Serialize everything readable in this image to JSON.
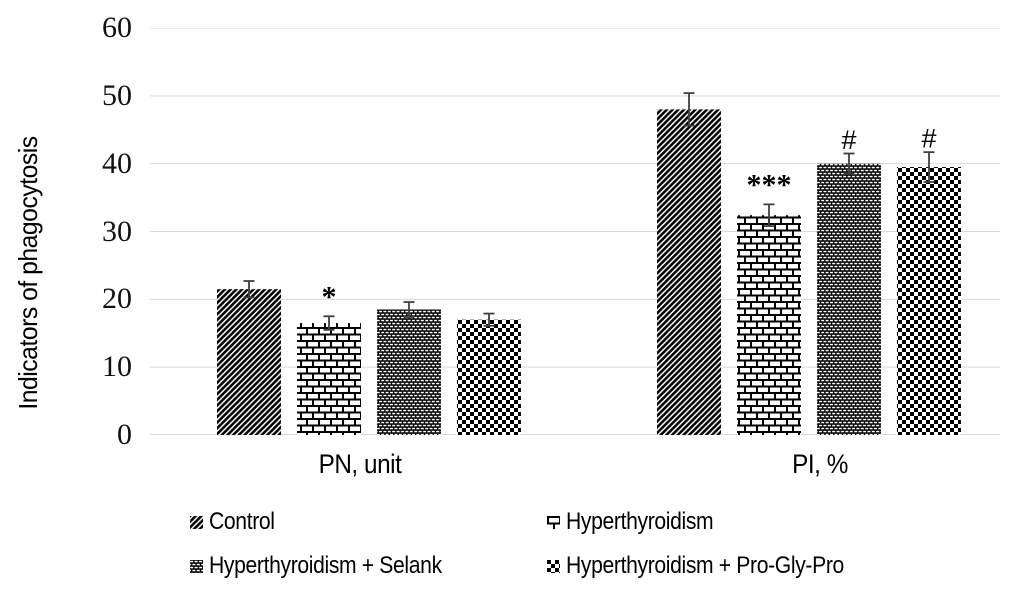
{
  "chart_data": {
    "type": "bar",
    "ylabel": "Indicators of phagocytosis",
    "categories": [
      "PN, unit",
      "PI, %"
    ],
    "series": [
      {
        "name": "Control",
        "pattern": "diag",
        "values": [
          21.5,
          48.0
        ],
        "errors": [
          1.2,
          2.4
        ]
      },
      {
        "name": "Hyperthyroidism",
        "pattern": "brick",
        "values": [
          16.5,
          32.4
        ],
        "errors": [
          1.0,
          1.6
        ]
      },
      {
        "name": "Hyperthyroidism + Selank",
        "pattern": "dots",
        "values": [
          18.5,
          40.0
        ],
        "errors": [
          1.1,
          1.5
        ]
      },
      {
        "name": "Hyperthyroidism + Pro-Gly-Pro",
        "pattern": "checker",
        "values": [
          17.0,
          39.5
        ],
        "errors": [
          0.9,
          2.2
        ]
      }
    ],
    "annotations": [
      {
        "series": 1,
        "category": 0,
        "text": "*"
      },
      {
        "series": 1,
        "category": 1,
        "text": "***"
      },
      {
        "series": 2,
        "category": 1,
        "text": "#"
      },
      {
        "series": 3,
        "category": 1,
        "text": "#"
      }
    ],
    "ylim": [
      0,
      60
    ],
    "yticks": [
      0,
      10,
      20,
      30,
      40,
      50,
      60
    ],
    "grid": true,
    "legend_position": "bottom",
    "colors": {
      "grid": "#d9d9d9",
      "bar": "#000000",
      "error_bar": "#3f3f3f",
      "text": "#000000",
      "background": "#ffffff"
    }
  }
}
